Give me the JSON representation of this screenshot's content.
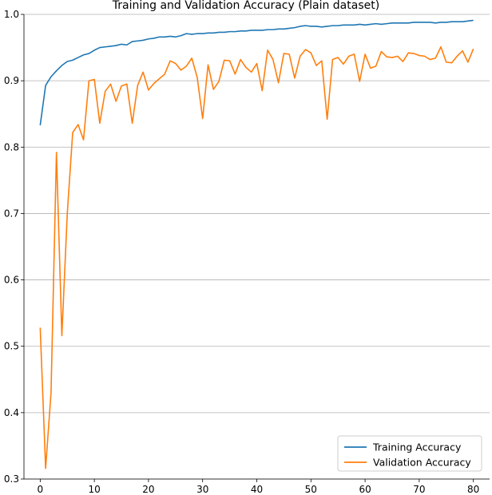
{
  "chart_data": {
    "type": "line",
    "title": "Training and Validation Accuracy (Plain dataset)",
    "xlabel": "",
    "ylabel": "",
    "xlim": [
      -3,
      83
    ],
    "ylim": [
      0.3,
      1.0
    ],
    "x_ticks": [
      0,
      10,
      20,
      30,
      40,
      50,
      60,
      70,
      80
    ],
    "y_ticks": [
      0.3,
      0.4,
      0.5,
      0.6,
      0.7,
      0.8,
      0.9,
      1.0
    ],
    "grid": "horizontal",
    "legend_position": "bottom-right",
    "series": [
      {
        "name": "Training Accuracy",
        "color": "#1f77b4",
        "x": [
          0,
          1,
          2,
          3,
          4,
          5,
          6,
          7,
          8,
          9,
          10,
          11,
          12,
          13,
          14,
          15,
          16,
          17,
          18,
          19,
          20,
          21,
          22,
          23,
          24,
          25,
          26,
          27,
          28,
          29,
          30,
          31,
          32,
          33,
          34,
          35,
          36,
          37,
          38,
          39,
          40,
          41,
          42,
          43,
          44,
          45,
          46,
          47,
          48,
          49,
          50,
          51,
          52,
          53,
          54,
          55,
          56,
          57,
          58,
          59,
          60,
          61,
          62,
          63,
          64,
          65,
          66,
          67,
          68,
          69,
          70,
          71,
          72,
          73,
          74,
          75,
          76,
          77,
          78,
          79,
          80
        ],
        "values": [
          0.833,
          0.893,
          0.906,
          0.915,
          0.923,
          0.929,
          0.931,
          0.935,
          0.939,
          0.941,
          0.946,
          0.95,
          0.951,
          0.952,
          0.953,
          0.955,
          0.954,
          0.959,
          0.96,
          0.961,
          0.963,
          0.964,
          0.966,
          0.966,
          0.967,
          0.966,
          0.968,
          0.971,
          0.97,
          0.971,
          0.971,
          0.972,
          0.972,
          0.973,
          0.973,
          0.974,
          0.974,
          0.975,
          0.975,
          0.976,
          0.976,
          0.976,
          0.977,
          0.977,
          0.978,
          0.978,
          0.979,
          0.98,
          0.982,
          0.983,
          0.982,
          0.982,
          0.981,
          0.982,
          0.983,
          0.983,
          0.984,
          0.984,
          0.984,
          0.985,
          0.984,
          0.985,
          0.986,
          0.985,
          0.986,
          0.987,
          0.987,
          0.987,
          0.987,
          0.988,
          0.988,
          0.988,
          0.988,
          0.987,
          0.988,
          0.988,
          0.989,
          0.989,
          0.989,
          0.99,
          0.991
        ]
      },
      {
        "name": "Validation Accuracy",
        "color": "#ff7f0e",
        "x": [
          0,
          1,
          2,
          3,
          4,
          5,
          6,
          7,
          8,
          9,
          10,
          11,
          12,
          13,
          14,
          15,
          16,
          17,
          18,
          19,
          20,
          21,
          22,
          23,
          24,
          25,
          26,
          27,
          28,
          29,
          30,
          31,
          32,
          33,
          34,
          35,
          36,
          37,
          38,
          39,
          40,
          41,
          42,
          43,
          44,
          45,
          46,
          47,
          48,
          49,
          50,
          51,
          52,
          53,
          54,
          55,
          56,
          57,
          58,
          59,
          60,
          61,
          62,
          63,
          64,
          65,
          66,
          67,
          68,
          69,
          70,
          71,
          72,
          73,
          74,
          75,
          76,
          77,
          78,
          79,
          80
        ],
        "values": [
          0.528,
          0.316,
          0.43,
          0.792,
          0.516,
          0.7,
          0.822,
          0.834,
          0.811,
          0.9,
          0.902,
          0.836,
          0.884,
          0.895,
          0.869,
          0.892,
          0.895,
          0.836,
          0.893,
          0.913,
          0.886,
          0.896,
          0.903,
          0.91,
          0.93,
          0.926,
          0.916,
          0.922,
          0.934,
          0.905,
          0.843,
          0.924,
          0.887,
          0.899,
          0.931,
          0.93,
          0.91,
          0.932,
          0.92,
          0.913,
          0.926,
          0.885,
          0.946,
          0.932,
          0.897,
          0.941,
          0.94,
          0.904,
          0.937,
          0.947,
          0.942,
          0.923,
          0.93,
          0.842,
          0.932,
          0.935,
          0.925,
          0.937,
          0.94,
          0.899,
          0.94,
          0.919,
          0.922,
          0.944,
          0.936,
          0.935,
          0.937,
          0.929,
          0.942,
          0.941,
          0.938,
          0.937,
          0.932,
          0.934,
          0.951,
          0.928,
          0.927,
          0.937,
          0.945,
          0.928,
          0.948
        ]
      }
    ]
  }
}
